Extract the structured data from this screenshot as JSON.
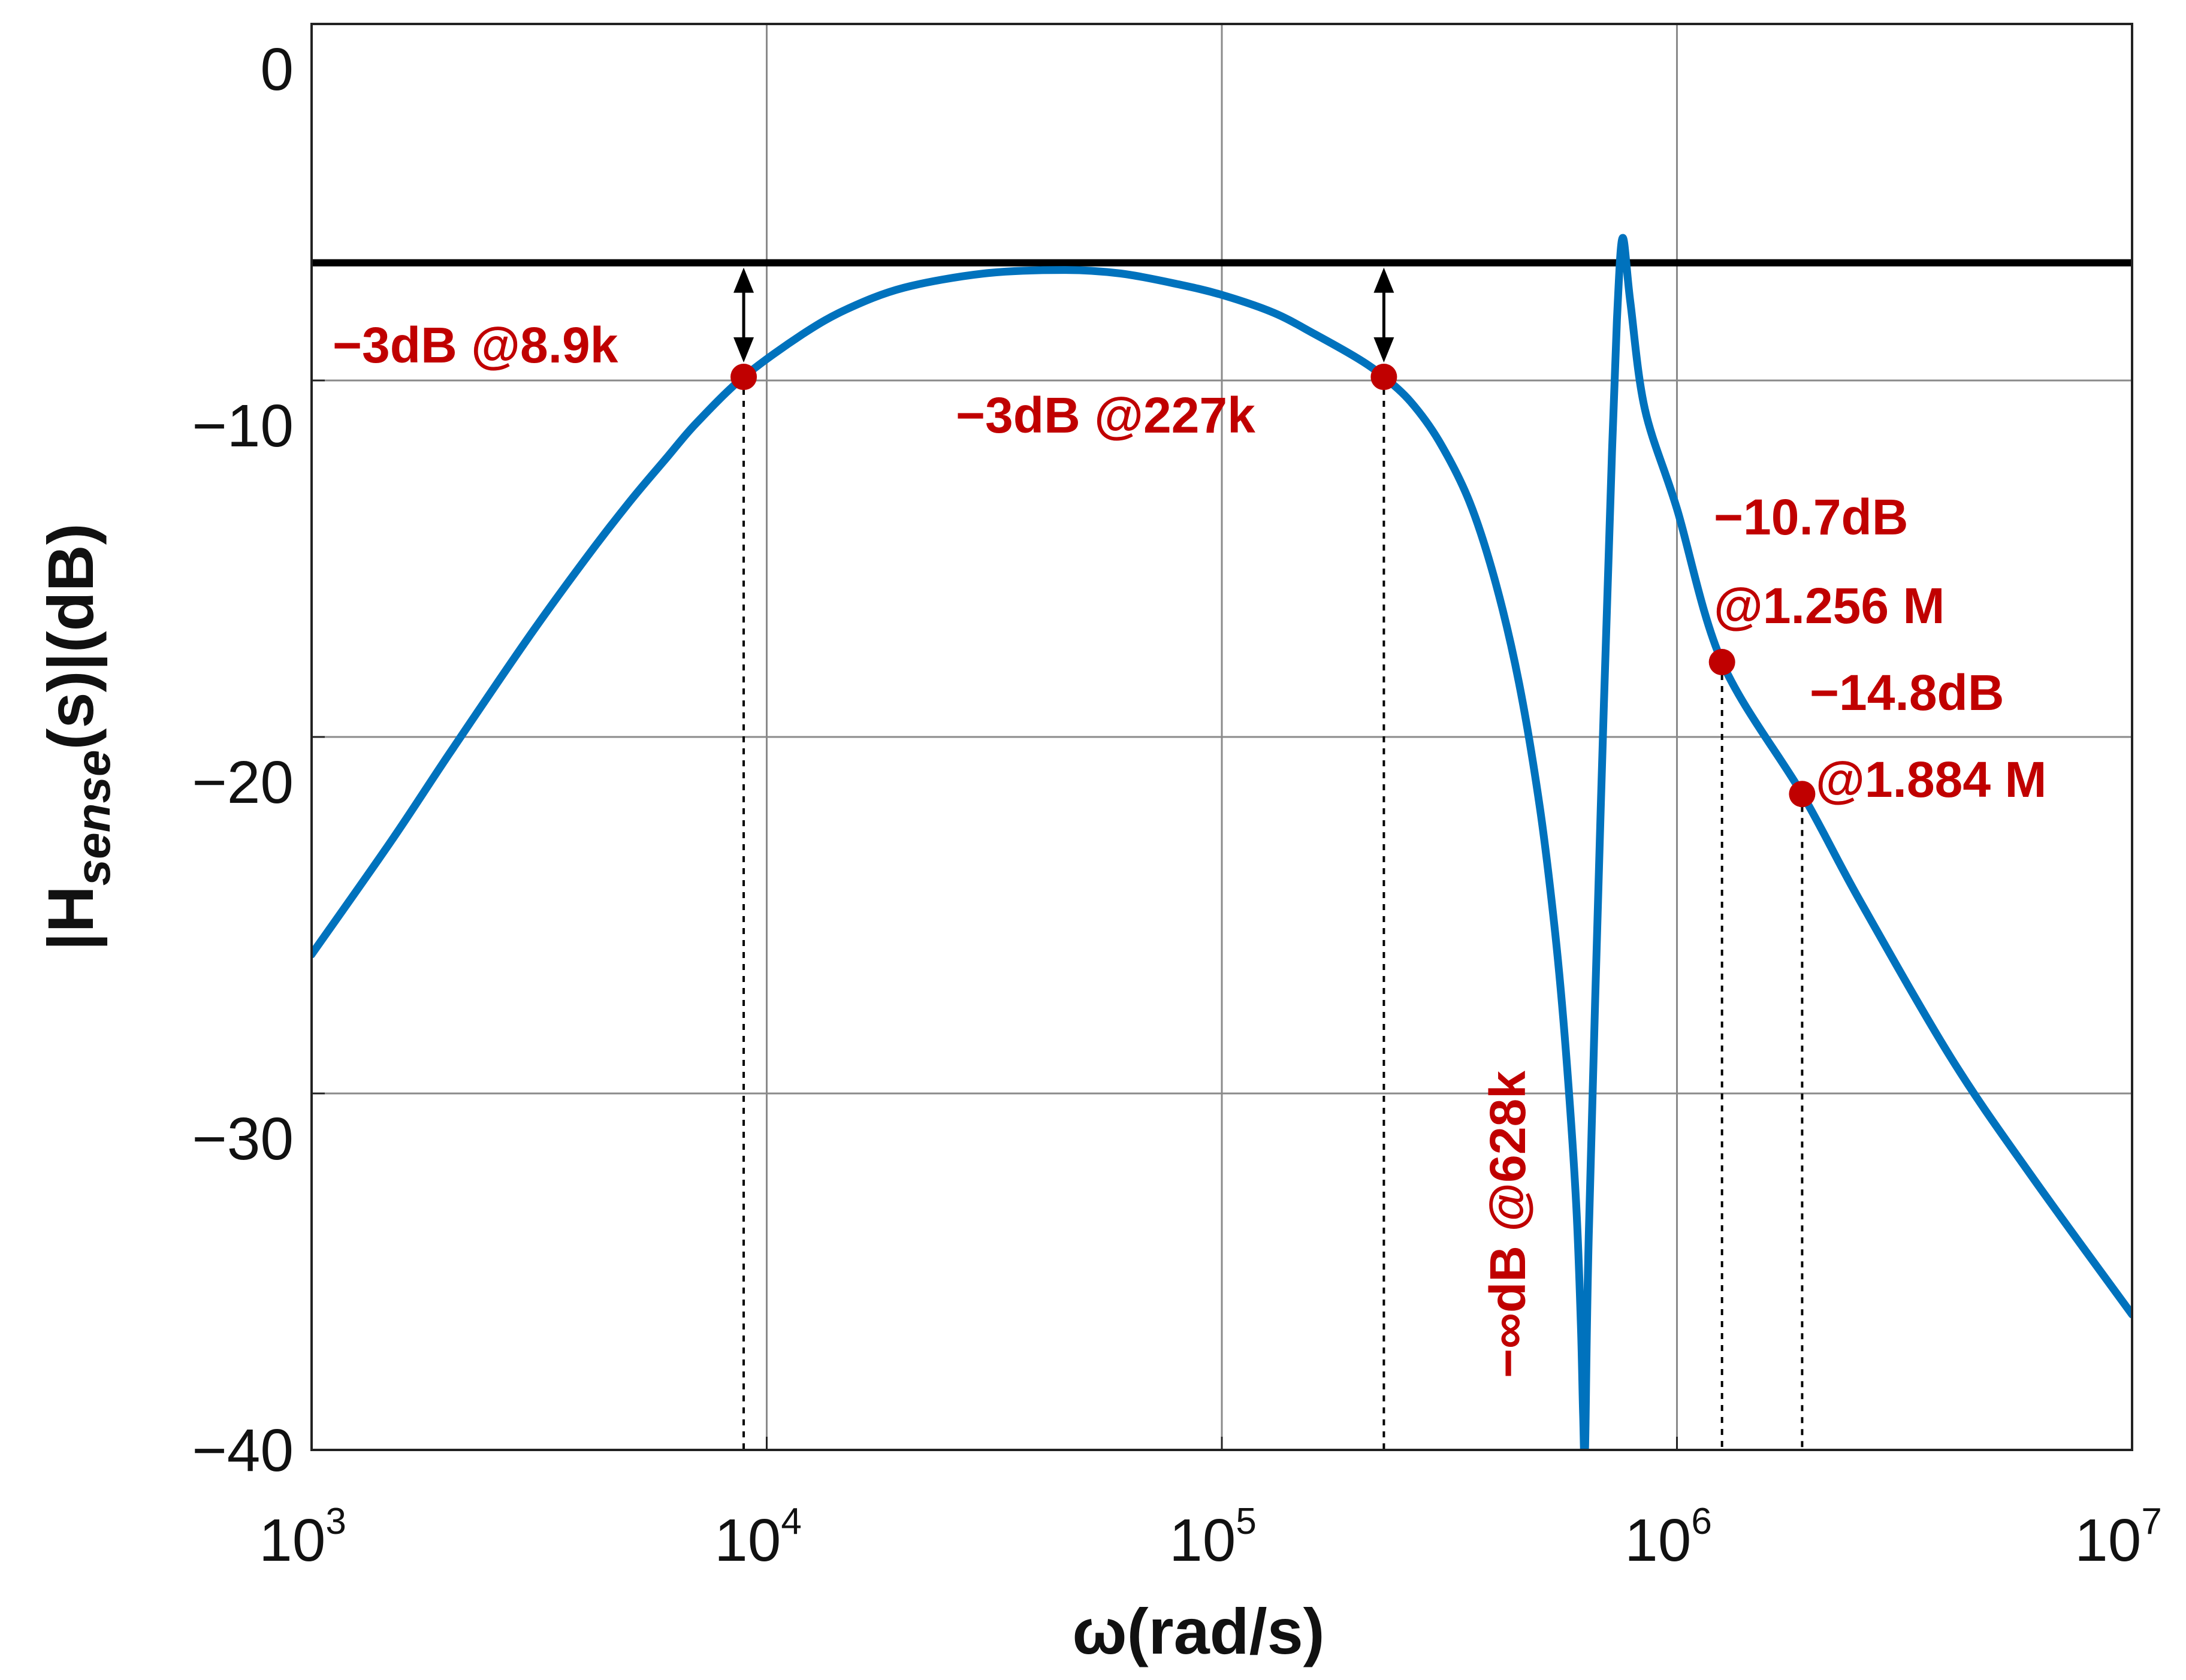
{
  "chart_data": {
    "type": "line",
    "title": "",
    "xlabel": "ω(rad/s)",
    "ylabel": {
      "prefix": "|H",
      "subscript": "sense",
      "suffix": "(s)|(dB)"
    },
    "xscale": "log",
    "xlim": [
      1000,
      10000000
    ],
    "ylim": [
      -40,
      0
    ],
    "grid": true,
    "x_ticks": [
      {
        "value": 1000,
        "base": "10",
        "exp": "3"
      },
      {
        "value": 10000,
        "base": "10",
        "exp": "4"
      },
      {
        "value": 100000,
        "base": "10",
        "exp": "5"
      },
      {
        "value": 1000000,
        "base": "10",
        "exp": "6"
      },
      {
        "value": 10000000,
        "base": "10",
        "exp": "7"
      }
    ],
    "y_ticks": [
      {
        "value": 0,
        "label": "0"
      },
      {
        "value": -10,
        "label": "−10"
      },
      {
        "value": -20,
        "label": "−20"
      },
      {
        "value": -30,
        "label": "−30"
      },
      {
        "value": -40,
        "label": "−40"
      }
    ],
    "reference_line": {
      "y": -6.7,
      "x_start": 1000,
      "x_end": 10000000,
      "color": "#000000"
    },
    "series": [
      {
        "name": "|Hsense(s)|",
        "color": "#0072bd",
        "x": [
          1000,
          1500,
          2000,
          3000,
          4000,
          5000,
          6000,
          7000,
          8900,
          12000,
          15000,
          20000,
          30000,
          45000,
          60000,
          80000,
          100000,
          130000,
          160000,
          200000,
          227000,
          260000,
          300000,
          350000,
          400000,
          450000,
          500000,
          540000,
          570000,
          600000,
          615000,
          622000,
          628000,
          640000,
          680000,
          720000,
          740000,
          760000,
          790000,
          850000,
          1000000,
          1256000,
          1884000,
          2500000,
          4000000,
          6000000,
          10000000
        ],
        "y": [
          -26.1,
          -22.9,
          -20.5,
          -17.2,
          -15.0,
          -13.4,
          -12.2,
          -11.2,
          -9.9,
          -8.7,
          -8.0,
          -7.4,
          -7.0,
          -6.9,
          -7.0,
          -7.3,
          -7.6,
          -8.1,
          -8.7,
          -9.4,
          -9.9,
          -10.6,
          -11.7,
          -13.4,
          -15.7,
          -18.5,
          -22.0,
          -25.5,
          -28.8,
          -33.0,
          -36.5,
          -39.0,
          -40.0,
          -34.0,
          -22.0,
          -12.0,
          -8.0,
          -6.0,
          -7.8,
          -10.8,
          -13.6,
          -17.9,
          -21.6,
          -24.5,
          -29.0,
          -32.3,
          -36.2
        ]
      }
    ],
    "markers": [
      {
        "x": 8900,
        "y": -9.9,
        "label": "−3dB @8.9k"
      },
      {
        "x": 227000,
        "y": -9.9,
        "label": "−3dB @227k"
      },
      {
        "x": 1256000,
        "y": -17.9,
        "label_line1": "−10.7dB",
        "label_line2": "@1.256 M"
      },
      {
        "x": 1884000,
        "y": -21.6,
        "label_line1": "−14.8dB",
        "label_line2": "@1.884 M"
      }
    ],
    "notch": {
      "x": 628000,
      "label": "−∞dB @628k"
    },
    "marker_color": "#c00000"
  }
}
